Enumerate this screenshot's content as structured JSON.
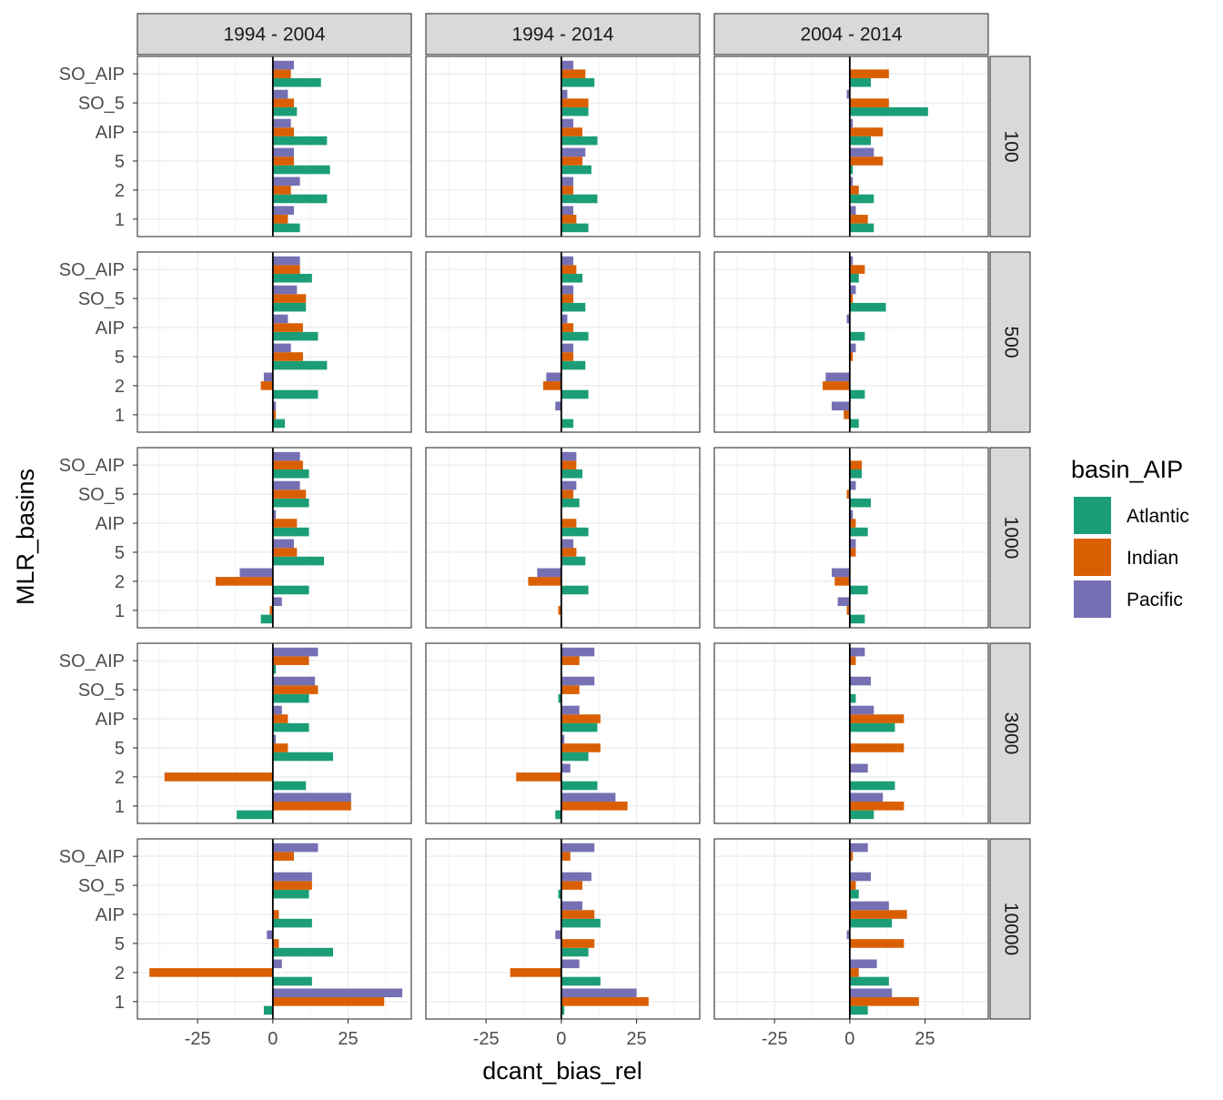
{
  "chart_data": {
    "type": "bar",
    "orientation": "horizontal",
    "layout": "facet_grid",
    "xlabel": "dcant_bias_rel",
    "ylabel": "MLR_basins",
    "xlim": [
      -45,
      46
    ],
    "x_ticks": [
      -25,
      0,
      25
    ],
    "x_tick_labels": [
      "-25",
      "0",
      "25"
    ],
    "categories": [
      "1",
      "2",
      "5",
      "AIP",
      "SO_5",
      "SO_AIP"
    ],
    "col_facets": [
      "1994 - 2004",
      "1994 - 2014",
      "2004 - 2014"
    ],
    "row_facets": [
      "100",
      "500",
      "1000",
      "3000",
      "10000"
    ],
    "legend": {
      "title": "basin_AIP",
      "position": "right",
      "entries": [
        {
          "name": "Atlantic",
          "color": "#1b9e77"
        },
        {
          "name": "Indian",
          "color": "#d95f02"
        },
        {
          "name": "Pacific",
          "color": "#7570b3"
        }
      ]
    },
    "grid": true,
    "reference_line_x": 0,
    "panels": [
      {
        "row": "100",
        "col": "1994 - 2004",
        "series": [
          {
            "name": "Atlantic",
            "values": [
              9,
              18,
              19,
              18,
              8,
              16
            ]
          },
          {
            "name": "Indian",
            "values": [
              5,
              6,
              7,
              7,
              7,
              6
            ]
          },
          {
            "name": "Pacific",
            "values": [
              7,
              9,
              7,
              6,
              5,
              7
            ]
          }
        ]
      },
      {
        "row": "100",
        "col": "1994 - 2014",
        "series": [
          {
            "name": "Atlantic",
            "values": [
              9,
              12,
              10,
              12,
              9,
              11
            ]
          },
          {
            "name": "Indian",
            "values": [
              5,
              4,
              7,
              7,
              9,
              8
            ]
          },
          {
            "name": "Pacific",
            "values": [
              4,
              4,
              8,
              4,
              2,
              4
            ]
          }
        ]
      },
      {
        "row": "100",
        "col": "2004 - 2014",
        "series": [
          {
            "name": "Atlantic",
            "values": [
              8,
              8,
              1,
              7,
              26,
              7
            ]
          },
          {
            "name": "Indian",
            "values": [
              6,
              3,
              11,
              11,
              13,
              13
            ]
          },
          {
            "name": "Pacific",
            "values": [
              2,
              1,
              8,
              1,
              -1,
              0
            ]
          }
        ]
      },
      {
        "row": "500",
        "col": "1994 - 2004",
        "series": [
          {
            "name": "Atlantic",
            "values": [
              4,
              15,
              18,
              15,
              11,
              13
            ]
          },
          {
            "name": "Indian",
            "values": [
              1,
              -4,
              10,
              10,
              11,
              9
            ]
          },
          {
            "name": "Pacific",
            "values": [
              1,
              -3,
              6,
              5,
              8,
              9
            ]
          }
        ]
      },
      {
        "row": "500",
        "col": "1994 - 2014",
        "series": [
          {
            "name": "Atlantic",
            "values": [
              4,
              9,
              8,
              9,
              8,
              7
            ]
          },
          {
            "name": "Indian",
            "values": [
              0,
              -6,
              4,
              4,
              4,
              5
            ]
          },
          {
            "name": "Pacific",
            "values": [
              -2,
              -5,
              4,
              2,
              4,
              4
            ]
          }
        ]
      },
      {
        "row": "500",
        "col": "2004 - 2014",
        "series": [
          {
            "name": "Atlantic",
            "values": [
              3,
              5,
              0,
              5,
              12,
              3
            ]
          },
          {
            "name": "Indian",
            "values": [
              -2,
              -9,
              1,
              0,
              1,
              5
            ]
          },
          {
            "name": "Pacific",
            "values": [
              -6,
              -8,
              2,
              -1,
              2,
              1
            ]
          }
        ]
      },
      {
        "row": "1000",
        "col": "1994 - 2004",
        "series": [
          {
            "name": "Atlantic",
            "values": [
              -4,
              12,
              17,
              12,
              12,
              12
            ]
          },
          {
            "name": "Indian",
            "values": [
              -1,
              -19,
              8,
              8,
              11,
              10
            ]
          },
          {
            "name": "Pacific",
            "values": [
              3,
              -11,
              7,
              1,
              9,
              9
            ]
          }
        ]
      },
      {
        "row": "1000",
        "col": "1994 - 2014",
        "series": [
          {
            "name": "Atlantic",
            "values": [
              0,
              9,
              8,
              9,
              6,
              7
            ]
          },
          {
            "name": "Indian",
            "values": [
              -1,
              -11,
              5,
              5,
              4,
              5
            ]
          },
          {
            "name": "Pacific",
            "values": [
              0,
              -8,
              4,
              0,
              5,
              5
            ]
          }
        ]
      },
      {
        "row": "1000",
        "col": "2004 - 2014",
        "series": [
          {
            "name": "Atlantic",
            "values": [
              5,
              6,
              0,
              6,
              7,
              4
            ]
          },
          {
            "name": "Indian",
            "values": [
              -1,
              -5,
              2,
              2,
              -1,
              4
            ]
          },
          {
            "name": "Pacific",
            "values": [
              -4,
              -6,
              2,
              1,
              2,
              0
            ]
          }
        ]
      },
      {
        "row": "3000",
        "col": "1994 - 2004",
        "series": [
          {
            "name": "Atlantic",
            "values": [
              -12,
              11,
              20,
              12,
              12,
              1
            ]
          },
          {
            "name": "Indian",
            "values": [
              26,
              -36,
              5,
              5,
              15,
              12
            ]
          },
          {
            "name": "Pacific",
            "values": [
              26,
              0,
              1,
              3,
              14,
              15
            ]
          }
        ]
      },
      {
        "row": "3000",
        "col": "1994 - 2014",
        "series": [
          {
            "name": "Atlantic",
            "values": [
              -2,
              12,
              9,
              12,
              -1,
              0
            ]
          },
          {
            "name": "Indian",
            "values": [
              22,
              -15,
              13,
              13,
              6,
              6
            ]
          },
          {
            "name": "Pacific",
            "values": [
              18,
              3,
              1,
              6,
              11,
              11
            ]
          }
        ]
      },
      {
        "row": "3000",
        "col": "2004 - 2014",
        "series": [
          {
            "name": "Atlantic",
            "values": [
              8,
              15,
              0,
              15,
              2,
              0
            ]
          },
          {
            "name": "Indian",
            "values": [
              18,
              0,
              18,
              18,
              0,
              2
            ]
          },
          {
            "name": "Pacific",
            "values": [
              11,
              6,
              0,
              8,
              7,
              5
            ]
          }
        ]
      },
      {
        "row": "10000",
        "col": "1994 - 2004",
        "series": [
          {
            "name": "Atlantic",
            "values": [
              -3,
              13,
              20,
              13,
              12,
              0
            ]
          },
          {
            "name": "Indian",
            "values": [
              37,
              -41,
              2,
              2,
              13,
              7
            ]
          },
          {
            "name": "Pacific",
            "values": [
              43,
              3,
              -2,
              0,
              13,
              15
            ]
          }
        ]
      },
      {
        "row": "10000",
        "col": "1994 - 2014",
        "series": [
          {
            "name": "Atlantic",
            "values": [
              1,
              13,
              9,
              13,
              -1,
              0
            ]
          },
          {
            "name": "Indian",
            "values": [
              29,
              -17,
              11,
              11,
              7,
              3
            ]
          },
          {
            "name": "Pacific",
            "values": [
              25,
              6,
              -2,
              7,
              10,
              11
            ]
          }
        ]
      },
      {
        "row": "10000",
        "col": "2004 - 2014",
        "series": [
          {
            "name": "Atlantic",
            "values": [
              6,
              13,
              0,
              14,
              3,
              0
            ]
          },
          {
            "name": "Indian",
            "values": [
              23,
              3,
              18,
              19,
              2,
              1
            ]
          },
          {
            "name": "Pacific",
            "values": [
              14,
              9,
              -1,
              13,
              7,
              6
            ]
          }
        ]
      }
    ]
  }
}
